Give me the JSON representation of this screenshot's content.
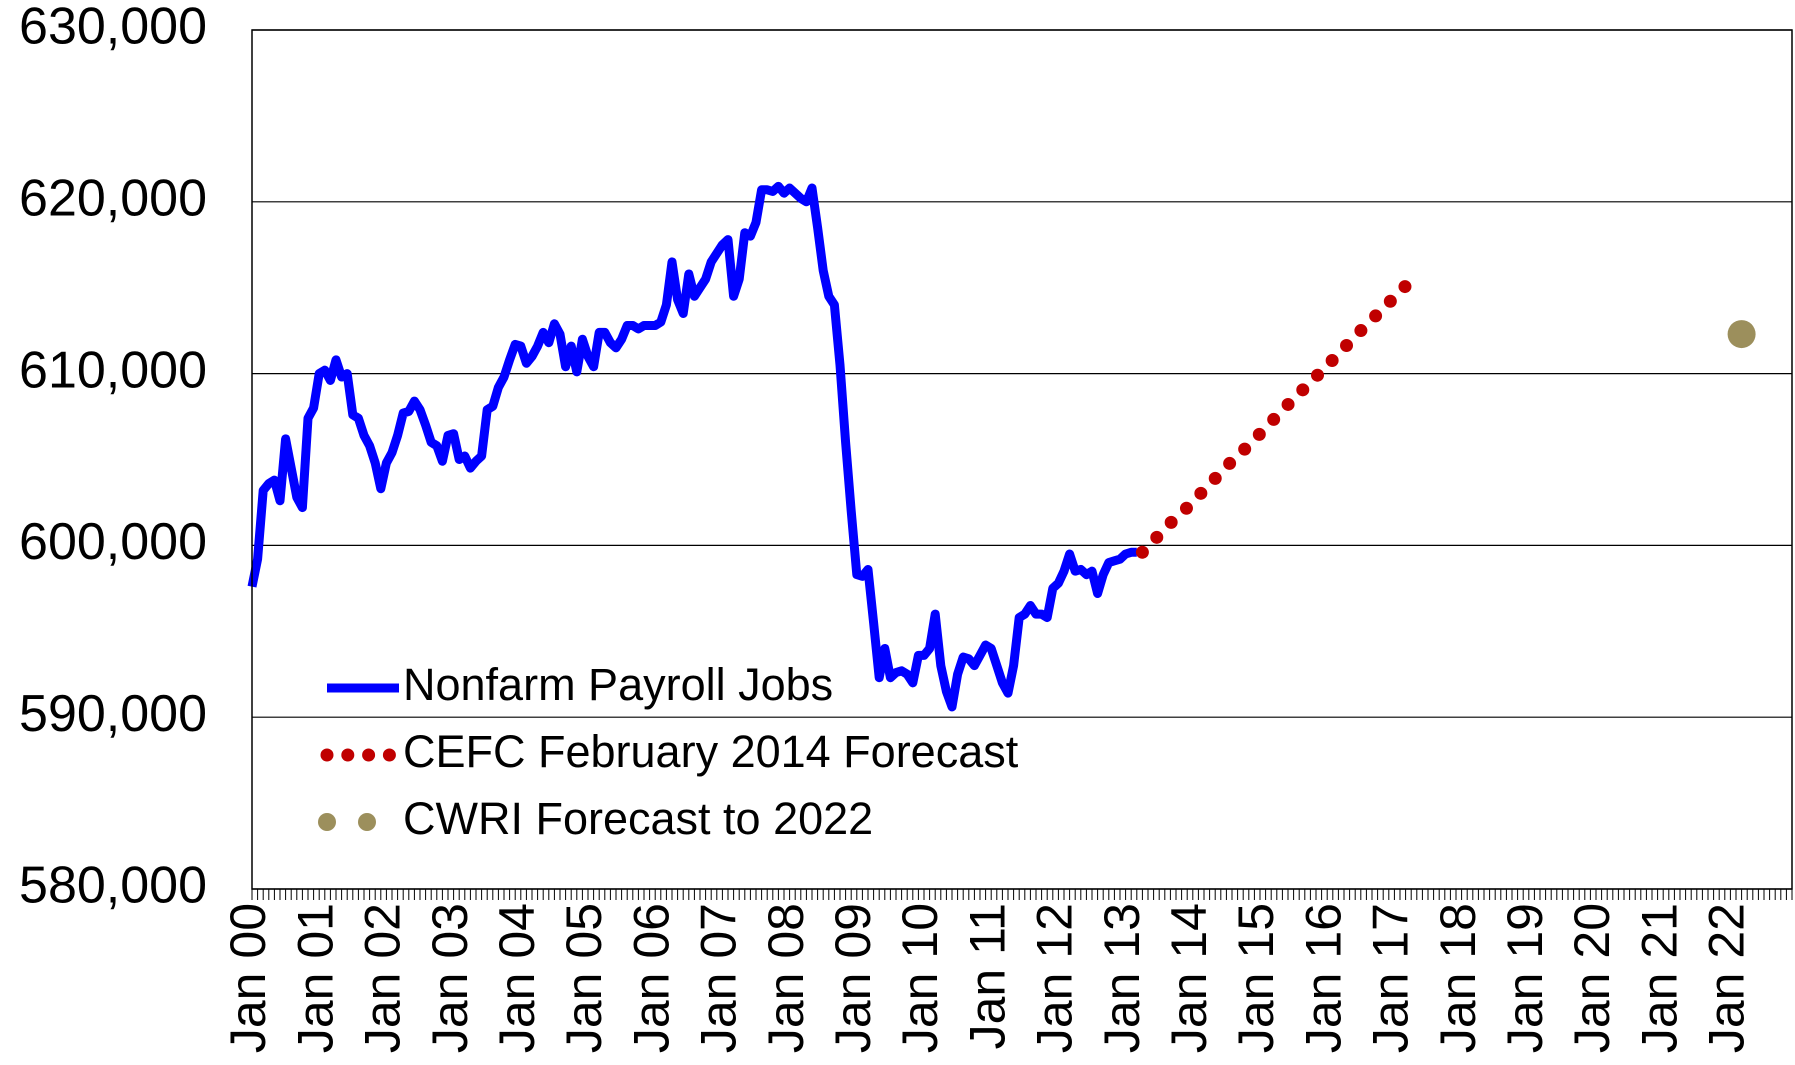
{
  "chart_data": {
    "type": "line",
    "ylim": [
      580000,
      630000
    ],
    "yticks": [
      {
        "value": 580000,
        "label": "580,000"
      },
      {
        "value": 590000,
        "label": "590,000"
      },
      {
        "value": 600000,
        "label": "600,000"
      },
      {
        "value": 610000,
        "label": "610,000"
      },
      {
        "value": 620000,
        "label": "620,000"
      },
      {
        "value": 630000,
        "label": "630,000"
      }
    ],
    "grid": true,
    "legend": "lower-left",
    "categories": [
      "Jan 00",
      null,
      null,
      null,
      null,
      null,
      null,
      null,
      null,
      null,
      null,
      null,
      "Jan 01",
      null,
      null,
      null,
      null,
      null,
      null,
      null,
      null,
      null,
      null,
      null,
      "Jan 02",
      null,
      null,
      null,
      null,
      null,
      null,
      null,
      null,
      null,
      null,
      null,
      "Jan 03",
      null,
      null,
      null,
      null,
      null,
      null,
      null,
      null,
      null,
      null,
      null,
      "Jan 04",
      null,
      null,
      null,
      null,
      null,
      null,
      null,
      null,
      null,
      null,
      null,
      "Jan 05",
      null,
      null,
      null,
      null,
      null,
      null,
      null,
      null,
      null,
      null,
      null,
      "Jan 06",
      null,
      null,
      null,
      null,
      null,
      null,
      null,
      null,
      null,
      null,
      null,
      "Jan 07",
      null,
      null,
      null,
      null,
      null,
      null,
      null,
      null,
      null,
      null,
      null,
      "Jan 08",
      null,
      null,
      null,
      null,
      null,
      null,
      null,
      null,
      null,
      null,
      null,
      "Jan 09",
      null,
      null,
      null,
      null,
      null,
      null,
      null,
      null,
      null,
      null,
      null,
      "Jan 10",
      null,
      null,
      null,
      null,
      null,
      null,
      null,
      null,
      null,
      null,
      null,
      "Jan 11",
      null,
      null,
      null,
      null,
      null,
      null,
      null,
      null,
      null,
      null,
      null,
      "Jan 12",
      null,
      null,
      null,
      null,
      null,
      null,
      null,
      null,
      null,
      null,
      null,
      "Jan 13",
      null,
      null,
      null,
      null,
      null,
      null,
      null,
      null,
      null,
      null,
      null,
      "Jan 14",
      null,
      null,
      null,
      null,
      null,
      null,
      null,
      null,
      null,
      null,
      null,
      "Jan 15",
      null,
      null,
      null,
      null,
      null,
      null,
      null,
      null,
      null,
      null,
      null,
      "Jan 16",
      null,
      null,
      null,
      null,
      null,
      null,
      null,
      null,
      null,
      null,
      null,
      "Jan 17",
      null,
      null,
      null,
      null,
      null,
      null,
      null,
      null,
      null,
      null,
      null,
      "Jan 18",
      null,
      null,
      null,
      null,
      null,
      null,
      null,
      null,
      null,
      null,
      null,
      "Jan 19",
      null,
      null,
      null,
      null,
      null,
      null,
      null,
      null,
      null,
      null,
      null,
      "Jan 20",
      null,
      null,
      null,
      null,
      null,
      null,
      null,
      null,
      null,
      null,
      null,
      "Jan 21",
      null,
      null,
      null,
      null,
      null,
      null,
      null,
      null,
      null,
      null,
      null,
      "Jan 22",
      null,
      null,
      null,
      null,
      null,
      null,
      null,
      null,
      null,
      null,
      null
    ],
    "series": [
      {
        "name": "Nonfarm Payroll Jobs",
        "color": "#0000ff",
        "style": "solid",
        "values": [
          597600,
          599200,
          603200,
          603600,
          603800,
          602600,
          606200,
          604500,
          602800,
          602200,
          607400,
          608000,
          610000,
          610200,
          609600,
          610800,
          609800,
          610000,
          607600,
          607400,
          606400,
          605800,
          604800,
          603300,
          604800,
          605400,
          606400,
          607700,
          607800,
          608400,
          607900,
          607000,
          606000,
          605800,
          604900,
          606400,
          606500,
          605000,
          605200,
          604500,
          604900,
          605200,
          607900,
          608100,
          609200,
          609800,
          610800,
          611700,
          611600,
          610600,
          611000,
          611600,
          612400,
          611800,
          612900,
          612300,
          610400,
          611600,
          610100,
          612000,
          611000,
          610400,
          612400,
          612400,
          611800,
          611500,
          612000,
          612800,
          612800,
          612600,
          612800,
          612800,
          612800,
          613000,
          614000,
          616500,
          614300,
          613500,
          615800,
          614500,
          615000,
          615500,
          616500,
          617000,
          617500,
          617800,
          614500,
          615500,
          618200,
          618000,
          618800,
          620700,
          620700,
          620600,
          620900,
          620500,
          620800,
          620500,
          620200,
          620000,
          620800,
          618500,
          616000,
          614500,
          614000,
          610500,
          606000,
          602000,
          598300,
          598200,
          598600,
          595500,
          592300,
          594000,
          592300,
          592600,
          592700,
          592500,
          592000,
          593600,
          593600,
          594000,
          596000,
          593000,
          591500,
          590600,
          592500,
          593500,
          593400,
          593000,
          593600,
          594200,
          594000,
          593000,
          592000,
          591400,
          593000,
          595800,
          596000,
          596500,
          596000,
          596000,
          595800,
          597500,
          597800,
          598500,
          599500,
          598500,
          598600,
          598300,
          598500,
          597200,
          598300,
          599000,
          599100,
          599200,
          599500,
          599600,
          599600,
          null,
          null,
          null,
          null,
          null,
          null,
          null,
          null,
          null,
          null,
          null,
          null,
          null,
          null,
          null,
          null,
          null,
          null,
          null,
          null,
          null,
          null,
          null,
          null,
          null,
          null,
          null,
          null,
          null,
          null,
          null,
          null,
          null,
          null,
          null,
          null,
          null,
          null,
          null,
          null,
          null,
          null,
          null,
          null,
          null,
          null,
          null,
          null,
          null,
          null,
          null,
          null,
          null,
          null,
          null,
          null,
          null,
          null,
          null,
          null,
          null,
          null,
          null,
          null,
          null,
          null,
          null,
          null,
          null,
          null,
          null,
          null,
          null,
          null,
          null,
          null,
          null,
          null,
          null,
          null,
          null,
          null,
          null,
          null,
          null,
          null,
          null,
          null,
          null,
          null,
          null,
          null,
          null,
          null,
          null,
          null,
          null,
          null,
          null,
          null,
          null,
          null,
          null,
          null,
          null,
          null,
          null,
          null,
          null,
          null,
          null,
          null,
          null,
          null,
          null,
          null,
          null
        ]
      },
      {
        "name": "CEFC February 2014 Forecast",
        "color": "#c00000",
        "style": "dotted",
        "values": [
          null,
          null,
          null,
          null,
          null,
          null,
          null,
          null,
          null,
          null,
          null,
          null,
          null,
          null,
          null,
          null,
          null,
          null,
          null,
          null,
          null,
          null,
          null,
          null,
          null,
          null,
          null,
          null,
          null,
          null,
          null,
          null,
          null,
          null,
          null,
          null,
          null,
          null,
          null,
          null,
          null,
          null,
          null,
          null,
          null,
          null,
          null,
          null,
          null,
          null,
          null,
          null,
          null,
          null,
          null,
          null,
          null,
          null,
          null,
          null,
          null,
          null,
          null,
          null,
          null,
          null,
          null,
          null,
          null,
          null,
          null,
          null,
          null,
          null,
          null,
          null,
          null,
          null,
          null,
          null,
          null,
          null,
          null,
          null,
          null,
          null,
          null,
          null,
          null,
          null,
          null,
          null,
          null,
          null,
          null,
          null,
          null,
          null,
          null,
          null,
          null,
          null,
          null,
          null,
          null,
          null,
          null,
          null,
          null,
          null,
          null,
          null,
          null,
          null,
          null,
          null,
          null,
          null,
          null,
          null,
          null,
          null,
          null,
          null,
          null,
          null,
          null,
          null,
          null,
          null,
          null,
          null,
          null,
          null,
          null,
          null,
          null,
          null,
          null,
          null,
          null,
          null,
          null,
          null,
          null,
          null,
          null,
          null,
          null,
          null,
          null,
          null,
          null,
          null,
          null,
          null,
          null,
          null,
          null,
          599600,
          599900,
          600300,
          600600,
          600900,
          601300,
          601600,
          601900,
          602200,
          602600,
          602900,
          603200,
          603600,
          603900,
          604200,
          604600,
          604900,
          605200,
          605500,
          605900,
          606200,
          606500,
          606900,
          607200,
          607500,
          607900,
          608200,
          608500,
          608800,
          609200,
          609500,
          609800,
          610200,
          610500,
          610800,
          611200,
          611500,
          611800,
          612100,
          612500,
          612800,
          613100,
          613500,
          613800,
          614100,
          614500,
          614800,
          615100,
          615400,
          615800,
          null,
          null,
          null,
          null,
          null,
          null,
          null,
          null,
          null,
          null,
          null,
          null,
          null,
          null,
          null,
          null,
          null,
          null,
          null,
          null,
          null,
          null,
          null,
          null,
          null,
          null,
          null,
          null,
          null,
          null,
          null,
          null,
          null,
          null,
          null,
          null,
          null,
          null,
          null,
          null,
          null,
          null,
          null,
          null,
          null,
          null,
          null,
          null,
          null,
          null,
          null,
          null,
          null,
          null,
          null,
          null,
          null,
          null,
          null,
          null,
          null,
          null,
          null,
          null,
          null,
          null,
          null
        ]
      },
      {
        "name": "CWRI Forecast to 2022",
        "color": "#9c8f5c",
        "style": "marker",
        "values": [
          null,
          null,
          null,
          null,
          null,
          null,
          null,
          null,
          null,
          null,
          null,
          null,
          null,
          null,
          null,
          null,
          null,
          null,
          null,
          null,
          null,
          null,
          null,
          null,
          null,
          null,
          null,
          null,
          null,
          null,
          null,
          null,
          null,
          null,
          null,
          null,
          null,
          null,
          null,
          null,
          null,
          null,
          null,
          null,
          null,
          null,
          null,
          null,
          null,
          null,
          null,
          null,
          null,
          null,
          null,
          null,
          null,
          null,
          null,
          null,
          null,
          null,
          null,
          null,
          null,
          null,
          null,
          null,
          null,
          null,
          null,
          null,
          null,
          null,
          null,
          null,
          null,
          null,
          null,
          null,
          null,
          null,
          null,
          null,
          null,
          null,
          null,
          null,
          null,
          null,
          null,
          null,
          null,
          null,
          null,
          null,
          null,
          null,
          null,
          null,
          null,
          null,
          null,
          null,
          null,
          null,
          null,
          null,
          null,
          null,
          null,
          null,
          null,
          null,
          null,
          null,
          null,
          null,
          null,
          null,
          null,
          null,
          null,
          null,
          null,
          null,
          null,
          null,
          null,
          null,
          null,
          null,
          null,
          null,
          null,
          null,
          null,
          null,
          null,
          null,
          null,
          null,
          null,
          null,
          null,
          null,
          null,
          null,
          null,
          null,
          null,
          null,
          null,
          null,
          null,
          null,
          null,
          null,
          null,
          null,
          null,
          null,
          null,
          null,
          null,
          null,
          null,
          null,
          null,
          null,
          null,
          null,
          null,
          null,
          null,
          null,
          null,
          null,
          null,
          null,
          null,
          null,
          null,
          null,
          null,
          null,
          null,
          null,
          null,
          null,
          null,
          null,
          null,
          null,
          null,
          null,
          null,
          null,
          null,
          null,
          null,
          null,
          null,
          null,
          null,
          null,
          null,
          null,
          null,
          null,
          null,
          null,
          null,
          null,
          null,
          null,
          null,
          null,
          null,
          null,
          null,
          null,
          null,
          null,
          null,
          null,
          null,
          null,
          null,
          null,
          null,
          null,
          null,
          null,
          null,
          null,
          null,
          null,
          null,
          null,
          null,
          null,
          null,
          null,
          null,
          null,
          null,
          null,
          null,
          null,
          null,
          null,
          null,
          null,
          null,
          null,
          null,
          null,
          null,
          null,
          null,
          null,
          null,
          null,
          null,
          null,
          612300,
          null,
          null,
          null,
          null,
          null,
          null,
          null,
          null,
          null
        ]
      }
    ]
  }
}
